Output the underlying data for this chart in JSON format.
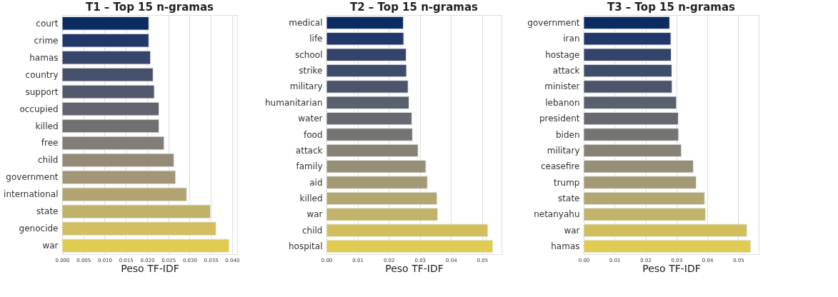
{
  "chart_data": [
    {
      "type": "bar",
      "orientation": "horizontal",
      "title": "T1 – Top 15 n-gramas",
      "xlabel": "Peso TF-IDF",
      "grid": "x",
      "legend": false,
      "categories": [
        "court",
        "crime",
        "hamas",
        "country",
        "support",
        "occupied",
        "killed",
        "free",
        "child",
        "government",
        "international",
        "state",
        "genocide",
        "war"
      ],
      "values": [
        0.0204,
        0.0204,
        0.0208,
        0.0214,
        0.0217,
        0.0228,
        0.0228,
        0.024,
        0.0263,
        0.0267,
        0.0293,
        0.0349,
        0.0362,
        0.0393
      ],
      "colors": [
        "#0b2c60",
        "#23386a",
        "#36466a",
        "#464f6b",
        "#52596d",
        "#61646f",
        "#717071",
        "#827e75",
        "#938b76",
        "#a29676",
        "#b1a472",
        "#c1b26a",
        "#d1be5f",
        "#e0cc52"
      ],
      "xlim": [
        0,
        0.0412
      ],
      "xticks": [
        {
          "value": 0,
          "label": "0.000"
        },
        {
          "value": 0.005,
          "label": "0.005"
        },
        {
          "value": 0.01,
          "label": "0.010"
        },
        {
          "value": 0.015,
          "label": "0.015"
        },
        {
          "value": 0.02,
          "label": "0.020"
        },
        {
          "value": 0.025,
          "label": "0.025"
        },
        {
          "value": 0.03,
          "label": "0.030"
        },
        {
          "value": 0.035,
          "label": "0.035"
        },
        {
          "value": 0.04,
          "label": "0.040"
        }
      ]
    },
    {
      "type": "bar",
      "orientation": "horizontal",
      "title": "T2 – Top 15 n-gramas",
      "xlabel": "Peso TF-IDF",
      "grid": "x",
      "legend": false,
      "categories": [
        "medical",
        "life",
        "school",
        "strike",
        "military",
        "humanitarian",
        "water",
        "food",
        "attack",
        "family",
        "aid",
        "killed",
        "war",
        "child",
        "hospital"
      ],
      "values": [
        0.0247,
        0.0248,
        0.0256,
        0.0257,
        0.0262,
        0.0265,
        0.0274,
        0.0276,
        0.0294,
        0.0319,
        0.0324,
        0.0355,
        0.0357,
        0.0518,
        0.0534
      ],
      "colors": [
        "#0b2c60",
        "#22376a",
        "#33436a",
        "#404c6b",
        "#4b546c",
        "#58606e",
        "#666970",
        "#757472",
        "#868276",
        "#958f77",
        "#a39a75",
        "#b2a671",
        "#c2b26a",
        "#d1bf5e",
        "#e0cc52"
      ],
      "xlim": [
        0,
        0.0562
      ],
      "xticks": [
        {
          "value": 0,
          "label": "0.00"
        },
        {
          "value": 0.01,
          "label": "0.01"
        },
        {
          "value": 0.02,
          "label": "0.02"
        },
        {
          "value": 0.03,
          "label": "0.03"
        },
        {
          "value": 0.04,
          "label": "0.04"
        },
        {
          "value": 0.05,
          "label": "0.05"
        }
      ]
    },
    {
      "type": "bar",
      "orientation": "horizontal",
      "title": "T3 – Top 15 n-gramas",
      "xlabel": "Peso TF-IDF",
      "grid": "x",
      "legend": false,
      "categories": [
        "government",
        "iran",
        "hostage",
        "attack",
        "minister",
        "lebanon",
        "president",
        "biden",
        "military",
        "ceasefire",
        "trump",
        "state",
        "netanyahu",
        "war",
        "hamas"
      ],
      "values": [
        0.0278,
        0.0282,
        0.0283,
        0.0285,
        0.0286,
        0.03,
        0.0306,
        0.0307,
        0.0316,
        0.0355,
        0.0364,
        0.0391,
        0.0394,
        0.0528,
        0.054
      ],
      "colors": [
        "#0b2c60",
        "#22376a",
        "#33436a",
        "#404c6b",
        "#4b546c",
        "#58606e",
        "#666970",
        "#757472",
        "#868276",
        "#958f77",
        "#a39a75",
        "#b2a671",
        "#c2b26a",
        "#d1bf5e",
        "#e0cc52"
      ],
      "xlim": [
        0,
        0.0566
      ],
      "xticks": [
        {
          "value": 0,
          "label": "0.00"
        },
        {
          "value": 0.01,
          "label": "0.01"
        },
        {
          "value": 0.02,
          "label": "0.02"
        },
        {
          "value": 0.03,
          "label": "0.03"
        },
        {
          "value": 0.04,
          "label": "0.04"
        },
        {
          "value": 0.05,
          "label": "0.05"
        }
      ]
    }
  ]
}
